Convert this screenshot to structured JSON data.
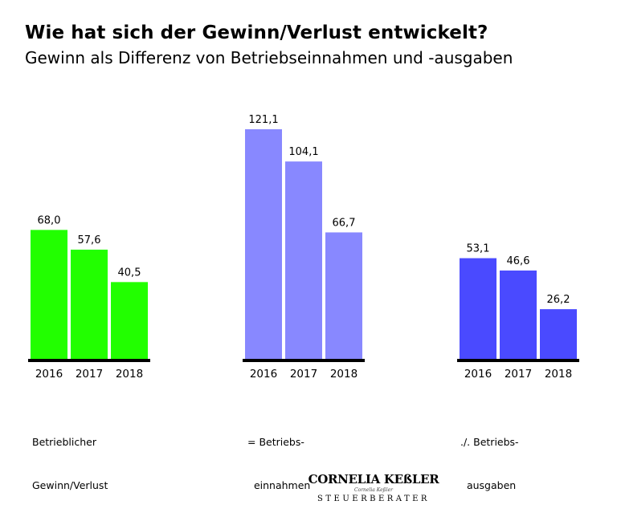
{
  "title": "Wie hat sich der Gewinn/Verlust entwickelt?",
  "subtitle": "Gewinn als Differenz von Betriebseinnahmen und -ausgaben",
  "logo": {
    "name": "CORNELIA KEßLER",
    "small": "Cornelia Keßler",
    "tag": "STEUERBERATER"
  },
  "chart_data": {
    "type": "bar",
    "title": "Wie hat sich der Gewinn/Verlust entwickelt?",
    "subtitle": "Gewinn als Differenz von Betriebseinnahmen und -ausgaben",
    "ylim": [
      0,
      121.1
    ],
    "grid": false,
    "groups": [
      {
        "label_line1": "Betrieblicher",
        "label_line2": "Gewinn/Verlust",
        "color": "#22ff00",
        "categories": [
          "2016",
          "2017",
          "2018"
        ],
        "values": [
          68.0,
          57.6,
          40.5
        ],
        "value_labels": [
          "68,0",
          "57,6",
          "40,5"
        ]
      },
      {
        "label_line1": "= Betriebs-",
        "label_line2": "  einnahmen",
        "color": "#8888ff",
        "categories": [
          "2016",
          "2017",
          "2018"
        ],
        "values": [
          121.1,
          104.1,
          66.7
        ],
        "value_labels": [
          "121,1",
          "104,1",
          "66,7"
        ]
      },
      {
        "label_line1": "./. Betriebs-",
        "label_line2": "  ausgaben",
        "color": "#4a4aff",
        "categories": [
          "2016",
          "2017",
          "2018"
        ],
        "values": [
          53.1,
          46.6,
          26.2
        ],
        "value_labels": [
          "53,1",
          "46,6",
          "26,2"
        ]
      }
    ]
  }
}
